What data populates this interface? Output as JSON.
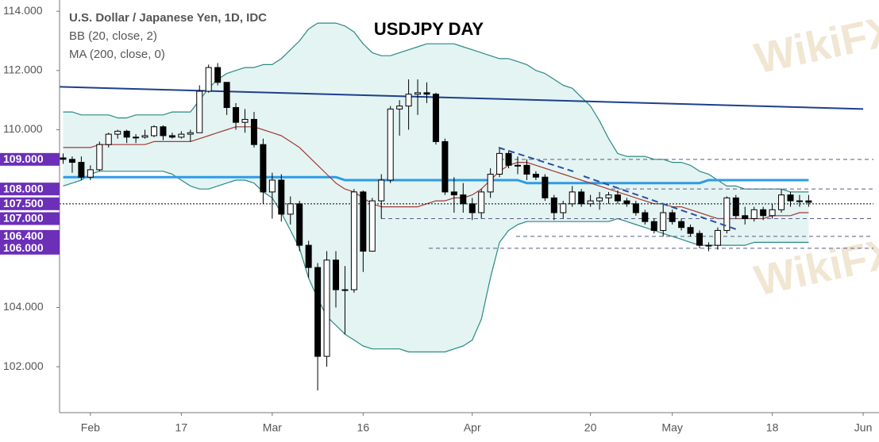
{
  "chart_data": {
    "type": "candlestick",
    "title": "U.S. Dollar / Japanese Yen, 1D, IDC",
    "indicators": [
      "BB (20, close, 2)",
      "MA (200, close, 0)"
    ],
    "annotation": "USDJPY DAY",
    "watermark": "WikiFX",
    "categories": [
      null,
      null,
      null,
      "Feb",
      null,
      null,
      null,
      null,
      null,
      null,
      null,
      null,
      null,
      "17",
      null,
      null,
      null,
      null,
      null,
      null,
      null,
      null,
      null,
      "Mar",
      null,
      null,
      null,
      null,
      null,
      null,
      null,
      null,
      null,
      "16",
      null,
      null,
      null,
      null,
      null,
      null,
      null,
      null,
      null,
      null,
      null,
      "Apr",
      null,
      null,
      null,
      null,
      null,
      null,
      null,
      null,
      null,
      null,
      null,
      null,
      "20",
      null,
      null,
      null,
      null,
      null,
      null,
      null,
      null,
      "May",
      null,
      null,
      null,
      null,
      null,
      null,
      null,
      null,
      null,
      null,
      "18",
      null,
      null,
      null,
      null,
      null,
      null,
      null,
      null,
      null,
      "Jun"
    ],
    "open": [
      109.05,
      109.0,
      108.9,
      108.4,
      108.65,
      109.5,
      109.85,
      109.95,
      109.75,
      109.75,
      109.8,
      110.1,
      109.8,
      109.75,
      109.85,
      109.9,
      111.3,
      112.1,
      111.6,
      110.75,
      110.25,
      110.35,
      109.5,
      107.9,
      108.3,
      107.15,
      107.5,
      106.1,
      105.35,
      102.35,
      105.6,
      104.6,
      104.6,
      107.9,
      105.9,
      107.6,
      108.3,
      110.7,
      110.8,
      111.2,
      111.25,
      111.2,
      109.6,
      107.9,
      107.8,
      107.5,
      107.2,
      107.9,
      108.5,
      109.2,
      108.8,
      108.8,
      108.5,
      108.4,
      107.7,
      107.2,
      107.5,
      107.9,
      107.5,
      107.6,
      107.7,
      107.8,
      107.6,
      107.5,
      107.2,
      106.9,
      106.6,
      107.2,
      106.9,
      106.7,
      106.5,
      106.1,
      106.1,
      106.6,
      107.7,
      107.1,
      107.0,
      107.3,
      107.1,
      107.3,
      107.8,
      107.6,
      107.6,
      null,
      null,
      null,
      null,
      null,
      null
    ],
    "high": [
      109.2,
      109.1,
      109.1,
      108.8,
      109.6,
      109.9,
      110.0,
      110.0,
      109.85,
      110.0,
      110.15,
      110.15,
      109.9,
      109.95,
      110.0,
      111.5,
      112.2,
      112.25,
      111.6,
      110.9,
      110.7,
      110.6,
      109.7,
      108.55,
      108.5,
      107.75,
      107.6,
      106.25,
      105.5,
      105.9,
      105.9,
      105.4,
      108.0,
      107.95,
      107.7,
      108.5,
      110.8,
      111.0,
      111.7,
      111.7,
      111.6,
      111.25,
      109.7,
      108.4,
      108.2,
      107.7,
      108.0,
      108.7,
      109.4,
      109.3,
      109.1,
      109.0,
      108.6,
      108.5,
      107.8,
      107.6,
      108.1,
      108.0,
      107.8,
      107.9,
      107.9,
      107.95,
      107.7,
      107.6,
      107.3,
      107.0,
      107.5,
      107.3,
      107.0,
      106.8,
      106.6,
      106.2,
      106.7,
      107.75,
      107.8,
      107.4,
      107.4,
      107.4,
      107.5,
      108.0,
      107.9,
      107.8,
      107.8,
      null,
      null,
      null,
      null,
      null,
      null
    ],
    "low": [
      108.85,
      108.55,
      108.3,
      108.3,
      108.6,
      109.4,
      109.7,
      109.55,
      109.55,
      109.7,
      109.75,
      109.65,
      109.7,
      109.7,
      109.6,
      109.9,
      111.25,
      111.5,
      110.5,
      110.0,
      109.9,
      109.4,
      107.5,
      107.0,
      106.9,
      106.8,
      105.9,
      105.0,
      101.2,
      102.0,
      104.0,
      103.1,
      104.5,
      105.2,
      105.9,
      107.0,
      108.2,
      109.8,
      110.0,
      110.5,
      110.9,
      109.5,
      107.8,
      107.2,
      107.2,
      106.95,
      107.0,
      107.7,
      108.4,
      108.7,
      108.5,
      108.3,
      108.3,
      107.6,
      106.95,
      107.0,
      107.4,
      107.4,
      107.4,
      107.3,
      107.5,
      107.5,
      107.4,
      107.1,
      106.8,
      106.5,
      106.4,
      106.8,
      106.6,
      106.4,
      106.0,
      105.9,
      105.95,
      106.5,
      107.0,
      106.8,
      106.9,
      106.95,
      107.0,
      107.2,
      107.4,
      107.4,
      107.4,
      null,
      null,
      null,
      null,
      null,
      null
    ],
    "close": [
      109.0,
      108.9,
      108.4,
      108.65,
      109.5,
      109.85,
      109.95,
      109.75,
      109.75,
      109.8,
      110.1,
      109.8,
      109.75,
      109.85,
      109.9,
      111.3,
      112.1,
      111.6,
      110.75,
      110.25,
      110.35,
      109.5,
      107.9,
      108.3,
      107.15,
      107.5,
      106.1,
      105.35,
      102.35,
      105.6,
      104.6,
      104.6,
      107.9,
      105.9,
      107.6,
      108.3,
      110.7,
      110.8,
      111.2,
      111.25,
      111.2,
      109.6,
      107.9,
      107.8,
      107.5,
      107.2,
      107.9,
      108.5,
      109.2,
      108.8,
      108.8,
      108.5,
      108.4,
      107.7,
      107.2,
      107.5,
      107.9,
      107.5,
      107.6,
      107.7,
      107.8,
      107.6,
      107.5,
      107.2,
      106.9,
      106.6,
      107.2,
      106.9,
      106.7,
      106.5,
      106.1,
      106.1,
      106.6,
      107.7,
      107.1,
      107.0,
      107.3,
      107.1,
      107.3,
      107.8,
      107.6,
      107.6,
      107.55,
      null,
      null,
      null,
      null,
      null,
      null
    ],
    "up_color": "#ffffff",
    "down_color": "#000000",
    "bands": {
      "fill": "#e3f4f3",
      "upper": {
        "color": "#2b8a83",
        "values": [
          110.6,
          110.6,
          110.5,
          110.5,
          110.5,
          110.5,
          110.4,
          110.4,
          110.5,
          110.5,
          110.5,
          110.5,
          110.6,
          110.6,
          110.6,
          111.0,
          111.4,
          111.7,
          111.9,
          112.0,
          112.1,
          112.1,
          112.2,
          112.2,
          112.4,
          112.7,
          113.0,
          113.4,
          113.6,
          113.6,
          113.6,
          113.5,
          113.3,
          112.9,
          112.6,
          112.5,
          112.5,
          112.6,
          112.7,
          112.8,
          112.9,
          112.9,
          112.9,
          112.9,
          112.8,
          112.7,
          112.6,
          112.5,
          112.4,
          112.4,
          112.3,
          112.2,
          112.0,
          111.9,
          111.7,
          111.5,
          111.4,
          111.1,
          110.8,
          110.3,
          109.7,
          109.2,
          109.1,
          109.1,
          109.1,
          109.0,
          109.0,
          108.9,
          108.9,
          108.8,
          108.6,
          108.5,
          108.3,
          108.1,
          108.1,
          108.0,
          108.0,
          108.0,
          108.0,
          108.0,
          107.9,
          107.9,
          107.9,
          null,
          null,
          null,
          null,
          null,
          null
        ]
      },
      "lower": {
        "color": "#2b8a83",
        "values": [
          108.1,
          108.2,
          108.3,
          108.5,
          108.6,
          108.6,
          108.6,
          108.6,
          108.6,
          108.6,
          108.6,
          108.6,
          108.5,
          108.3,
          108.1,
          108.0,
          108.0,
          108.1,
          108.2,
          108.3,
          108.3,
          108.2,
          107.9,
          107.7,
          107.2,
          106.6,
          106.0,
          105.0,
          104.3,
          103.7,
          103.4,
          103.1,
          102.9,
          102.7,
          102.6,
          102.6,
          102.6,
          102.6,
          102.5,
          102.5,
          102.5,
          102.5,
          102.5,
          102.6,
          102.7,
          102.9,
          103.6,
          105.0,
          106.2,
          106.6,
          106.8,
          106.9,
          106.9,
          106.9,
          106.9,
          106.9,
          106.9,
          106.9,
          106.9,
          106.9,
          106.9,
          107.0,
          106.9,
          106.8,
          106.7,
          106.6,
          106.5,
          106.4,
          106.3,
          106.2,
          106.1,
          106.1,
          106.1,
          106.1,
          106.1,
          106.1,
          106.2,
          106.2,
          106.2,
          106.2,
          106.2,
          106.2,
          106.2,
          null,
          null,
          null,
          null,
          null,
          null
        ]
      },
      "basis": {
        "color": "#a33a34",
        "values": [
          109.4,
          109.4,
          109.4,
          109.4,
          109.5,
          109.5,
          109.5,
          109.5,
          109.5,
          109.5,
          109.6,
          109.6,
          109.6,
          109.6,
          109.6,
          109.7,
          109.8,
          109.9,
          110.0,
          110.1,
          110.1,
          110.1,
          110.0,
          109.9,
          109.8,
          109.6,
          109.4,
          109.1,
          108.8,
          108.5,
          108.2,
          108.0,
          107.9,
          107.7,
          107.5,
          107.4,
          107.4,
          107.4,
          107.4,
          107.4,
          107.5,
          107.6,
          107.6,
          107.7,
          107.7,
          107.8,
          108.0,
          108.3,
          108.6,
          108.8,
          108.9,
          108.9,
          108.8,
          108.7,
          108.6,
          108.5,
          108.4,
          108.3,
          108.2,
          108.1,
          108.0,
          107.9,
          107.8,
          107.7,
          107.6,
          107.5,
          107.5,
          107.4,
          107.4,
          107.3,
          107.2,
          107.1,
          107.0,
          107.0,
          107.0,
          107.0,
          107.0,
          107.0,
          107.1,
          107.1,
          107.1,
          107.2,
          107.2,
          null,
          null,
          null,
          null,
          null,
          null
        ]
      }
    },
    "ma": {
      "color": "#2e9be6",
      "values": [
        108.4,
        108.4,
        108.4,
        108.4,
        108.4,
        108.4,
        108.4,
        108.4,
        108.4,
        108.4,
        108.4,
        108.4,
        108.4,
        108.4,
        108.4,
        108.4,
        108.4,
        108.4,
        108.4,
        108.4,
        108.4,
        108.4,
        108.4,
        108.4,
        108.4,
        108.4,
        108.4,
        108.4,
        108.4,
        108.4,
        108.4,
        108.3,
        108.3,
        108.3,
        108.3,
        108.3,
        108.3,
        108.3,
        108.3,
        108.3,
        108.3,
        108.3,
        108.3,
        108.3,
        108.3,
        108.3,
        108.3,
        108.3,
        108.3,
        108.3,
        108.3,
        108.2,
        108.2,
        108.2,
        108.2,
        108.2,
        108.2,
        108.2,
        108.2,
        108.2,
        108.2,
        108.2,
        108.2,
        108.2,
        108.2,
        108.2,
        108.2,
        108.2,
        108.2,
        108.2,
        108.2,
        108.3,
        108.3,
        108.3,
        108.3,
        108.3,
        108.3,
        108.3,
        108.3,
        108.3,
        108.3,
        108.3,
        108.3,
        null,
        null,
        null,
        null,
        null,
        null
      ]
    },
    "trendline": {
      "color": "#1d3f8c",
      "values": [
        111.45,
        110.7
      ]
    },
    "ylim": [
      100.45,
      114.38
    ],
    "yticks": [
      {
        "value": 102,
        "label": "102.000"
      },
      {
        "value": 104,
        "label": "104.000"
      },
      {
        "value": 110,
        "label": "110.000"
      },
      {
        "value": 112,
        "label": "112.000"
      },
      {
        "value": 114,
        "label": "114.000"
      }
    ],
    "levels": [
      {
        "value": 109,
        "label": "109.000"
      },
      {
        "value": 108,
        "label": "108.000"
      },
      {
        "value": 107.5,
        "label": "107.500"
      },
      {
        "value": 107,
        "label": "107.000"
      },
      {
        "value": 106.4,
        "label": "106.400"
      },
      {
        "value": 106,
        "label": "106.000"
      }
    ],
    "level_color": "#6b2fb8",
    "grid": false
  }
}
